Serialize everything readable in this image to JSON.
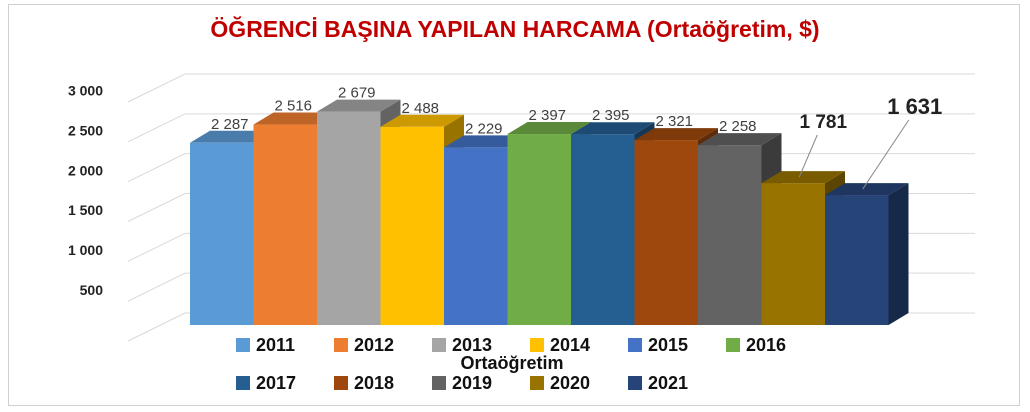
{
  "chart_data": {
    "type": "bar3d",
    "title": "ÖĞRENCİ BAŞINA YAPILAN HARCAMA (Ortaöğretim, $)",
    "categories": [
      "Ortaöğretim"
    ],
    "series": [
      {
        "name": "2011",
        "color": "#5b9bd5",
        "values": [
          2287
        ],
        "value_labels": [
          "2 287"
        ]
      },
      {
        "name": "2012",
        "color": "#ed7d31",
        "values": [
          2516
        ],
        "value_labels": [
          "2 516"
        ]
      },
      {
        "name": "2013",
        "color": "#a5a5a5",
        "values": [
          2679
        ],
        "value_labels": [
          "2 679"
        ]
      },
      {
        "name": "2014",
        "color": "#ffc000",
        "values": [
          2488
        ],
        "value_labels": [
          "2 488"
        ]
      },
      {
        "name": "2015",
        "color": "#4472c4",
        "values": [
          2229
        ],
        "value_labels": [
          "2 229"
        ]
      },
      {
        "name": "2016",
        "color": "#70ad47",
        "values": [
          2397
        ],
        "value_labels": [
          "2 397"
        ]
      },
      {
        "name": "2017",
        "color": "#255e91",
        "values": [
          2395
        ],
        "value_labels": [
          "2 395"
        ]
      },
      {
        "name": "2018",
        "color": "#9e480e",
        "values": [
          2321
        ],
        "value_labels": [
          "2 321"
        ]
      },
      {
        "name": "2019",
        "color": "#636363",
        "values": [
          2258
        ],
        "value_labels": [
          "2 258"
        ]
      },
      {
        "name": "2020",
        "color": "#997300",
        "values": [
          1781
        ],
        "value_labels": [
          "1 781"
        ]
      },
      {
        "name": "2021",
        "color": "#264478",
        "values": [
          1631
        ],
        "value_labels": [
          "1 631"
        ]
      }
    ],
    "ylim": [
      0,
      3000
    ],
    "yticks": [
      500,
      {
        "value": 1000,
        "label": "1 000"
      },
      {
        "value": 1500,
        "label": "1 500"
      },
      {
        "value": 2000,
        "label": "2 000"
      },
      {
        "value": 2500,
        "label": "2 500"
      },
      {
        "value": 3000,
        "label": "3 000"
      }
    ],
    "grid": true
  }
}
